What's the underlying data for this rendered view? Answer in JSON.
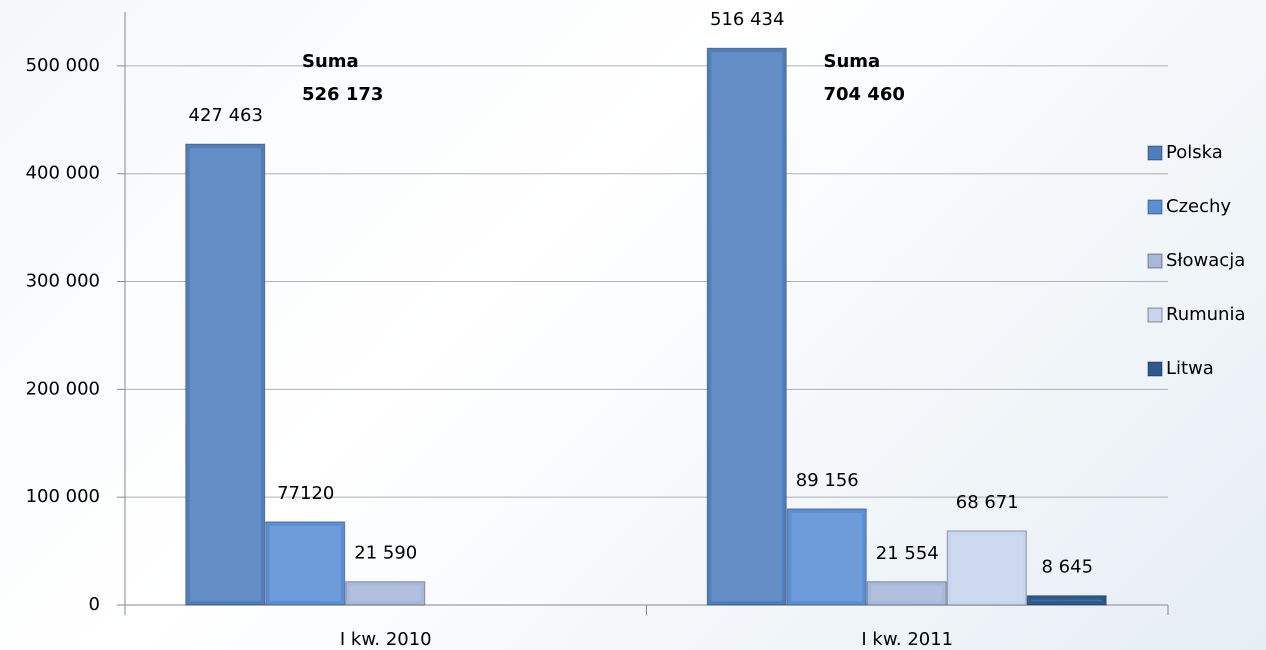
{
  "chart_data": {
    "type": "bar",
    "categories": [
      "I kw. 2010",
      "I kw. 2011"
    ],
    "series": [
      {
        "name": "Polska",
        "color": "#4f7ebe",
        "values": [
          427463,
          516434
        ],
        "value_labels": [
          "427 463",
          "516 434"
        ]
      },
      {
        "name": "Czechy",
        "color": "#5a8fd6",
        "values": [
          77120,
          89156
        ],
        "value_labels": [
          "77120",
          "89 156"
        ]
      },
      {
        "name": "Słowacja",
        "color": "#a7b8da",
        "values": [
          21590,
          21554
        ],
        "value_labels": [
          "21 590",
          "21 554"
        ]
      },
      {
        "name": "Rumunia",
        "color": "#c8d5ee",
        "values": [
          null,
          68671
        ],
        "value_labels": [
          null,
          "68 671"
        ]
      },
      {
        "name": "Litwa",
        "color": "#2d5a8e",
        "values": [
          null,
          8645
        ],
        "value_labels": [
          null,
          "8 645"
        ]
      }
    ],
    "annotations": [
      [
        "Suma",
        "526 173"
      ],
      [
        "Suma",
        "704 460"
      ]
    ],
    "ylim": [
      0,
      550000
    ],
    "yticks": [
      0,
      {
        "value": 100000,
        "label": "100 000"
      },
      {
        "value": 200000,
        "label": "200 000"
      },
      {
        "value": 300000,
        "label": "300 000"
      },
      {
        "value": 400000,
        "label": "400 000"
      },
      {
        "value": 500000,
        "label": "500 000"
      }
    ],
    "grid": true,
    "legend": "right"
  }
}
